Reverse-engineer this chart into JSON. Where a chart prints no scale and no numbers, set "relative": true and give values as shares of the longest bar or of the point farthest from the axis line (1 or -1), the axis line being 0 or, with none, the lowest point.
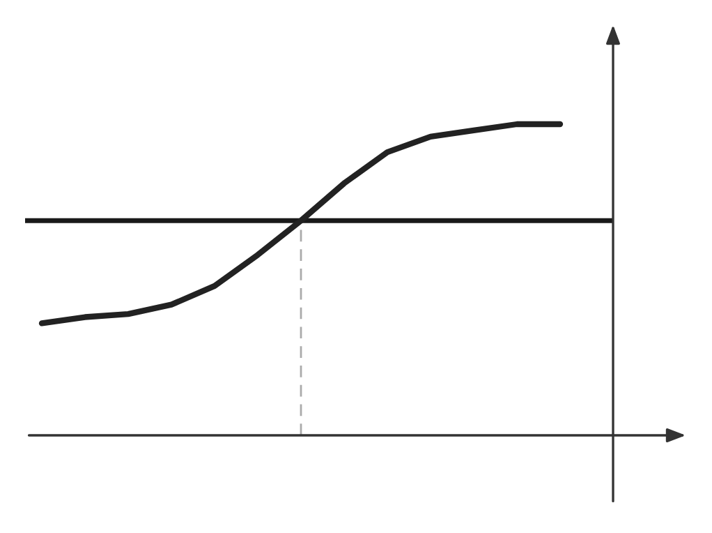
{
  "chart_data": {
    "type": "line",
    "relative": true,
    "categories": [
      null,
      null,
      null,
      null,
      null,
      null,
      null,
      null,
      null,
      null,
      null,
      null,
      null
    ],
    "series": [
      {
        "color": "#222222",
        "values": [
          0.36,
          0.38,
          0.39,
          0.42,
          0.48,
          0.58,
          0.69,
          0.81,
          0.91,
          0.96,
          0.98,
          1.0,
          1.0
        ]
      }
    ],
    "ref_lines": [
      {
        "axis": "y",
        "value": 0.69,
        "color": "#1a1a1a",
        "line_style": "solid"
      }
    ]
  }
}
